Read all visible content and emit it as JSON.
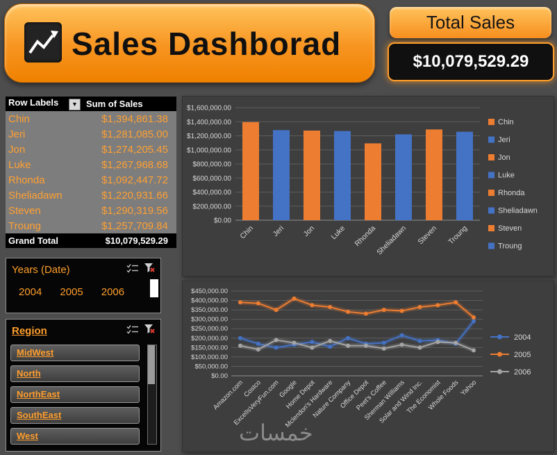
{
  "header": {
    "title": "Sales Dashborad",
    "icon": "line-chart-icon",
    "total_sales_label": "Total Sales",
    "total_sales_value": "$10,079,529.29"
  },
  "pivot": {
    "columns": [
      "Row Labels",
      "Sum of Sales"
    ],
    "filter_icon": "dropdown-filter-icon",
    "rows": [
      {
        "label": "Chin",
        "value": "$1,394,861.38"
      },
      {
        "label": "Jeri",
        "value": "$1,281,085.00"
      },
      {
        "label": "Jon",
        "value": "$1,274,205.45"
      },
      {
        "label": "Luke",
        "value": "$1,267,968.68"
      },
      {
        "label": "Rhonda",
        "value": "$1,092,447.72"
      },
      {
        "label": "Sheliadawn",
        "value": "$1,220,931.66"
      },
      {
        "label": "Steven",
        "value": "$1,290,319.56"
      },
      {
        "label": "Troung",
        "value": "$1,257,709.84"
      }
    ],
    "grand_total": {
      "label": "Grand Total",
      "value": "$10,079,529.29"
    }
  },
  "slicers": {
    "years": {
      "title": "Years (Date)",
      "items": [
        "2004",
        "2005",
        "2006"
      ],
      "icons": [
        "multiselect-icon",
        "clear-filter-icon"
      ]
    },
    "region": {
      "title": "Region",
      "items": [
        "MidWest",
        "North",
        "NorthEast",
        "SouthEast",
        "West"
      ],
      "icons": [
        "multiselect-icon",
        "clear-filter-icon"
      ]
    }
  },
  "watermark": "خمسات",
  "colors": {
    "accent_orange": "#F79420",
    "bar_orange": "#ED7D31",
    "bar_blue": "#4472C4",
    "line_gray": "#A5A5A5",
    "slicer_text": "#FF9E2C",
    "chart_bg": "#3E3E3E"
  },
  "chart_data": [
    {
      "type": "bar",
      "title": "",
      "categories": [
        "Chin",
        "Jeri",
        "Jon",
        "Luke",
        "Rhonda",
        "Sheliadawn",
        "Steven",
        "Troung"
      ],
      "values": [
        1394861.38,
        1281085.0,
        1274205.45,
        1267968.68,
        1092447.72,
        1220931.66,
        1290319.56,
        1257709.84
      ],
      "point_colors": [
        "#ED7D31",
        "#4472C4",
        "#ED7D31",
        "#4472C4",
        "#ED7D31",
        "#4472C4",
        "#ED7D31",
        "#4472C4"
      ],
      "legend": [
        {
          "label": "Chin",
          "color": "#ED7D31"
        },
        {
          "label": "Jeri",
          "color": "#4472C4"
        },
        {
          "label": "Jon",
          "color": "#ED7D31"
        },
        {
          "label": "Luke",
          "color": "#4472C4"
        },
        {
          "label": "Rhonda",
          "color": "#ED7D31"
        },
        {
          "label": "Sheliadawn",
          "color": "#4472C4"
        },
        {
          "label": "Steven",
          "color": "#ED7D31"
        },
        {
          "label": "Troung",
          "color": "#4472C4"
        }
      ],
      "xlabel": "",
      "ylabel": "",
      "ylim": [
        0,
        1600000
      ],
      "ytick_step": 200000,
      "grid": true,
      "legend_position": "right"
    },
    {
      "type": "line",
      "title": "",
      "categories": [
        "Amazon.com",
        "Costco",
        "ExcelIsVeryFun.com",
        "Google",
        "Home Depot",
        "Mclendon's Hardware",
        "Nature Company",
        "Office Depot",
        "Peet's Coffee",
        "Sherman Williams",
        "Solar and Wind Inc.",
        "The Economist",
        "Whole Foods",
        "Yahoo"
      ],
      "series": [
        {
          "name": "2004",
          "color": "#4472C4",
          "values": [
            200000,
            170000,
            150000,
            165000,
            180000,
            155000,
            200000,
            170000,
            175000,
            215000,
            185000,
            190000,
            170000,
            290000
          ]
        },
        {
          "name": "2005",
          "color": "#ED7D31",
          "values": [
            390000,
            385000,
            350000,
            410000,
            375000,
            365000,
            340000,
            330000,
            350000,
            345000,
            365000,
            375000,
            390000,
            310000
          ]
        },
        {
          "name": "2006",
          "color": "#A5A5A5",
          "values": [
            160000,
            140000,
            190000,
            175000,
            150000,
            185000,
            160000,
            160000,
            145000,
            165000,
            150000,
            180000,
            175000,
            135000
          ]
        }
      ],
      "xlabel": "",
      "ylabel": "",
      "ylim": [
        0,
        450000
      ],
      "ytick_step": 50000,
      "grid": true,
      "legend_position": "right"
    }
  ]
}
